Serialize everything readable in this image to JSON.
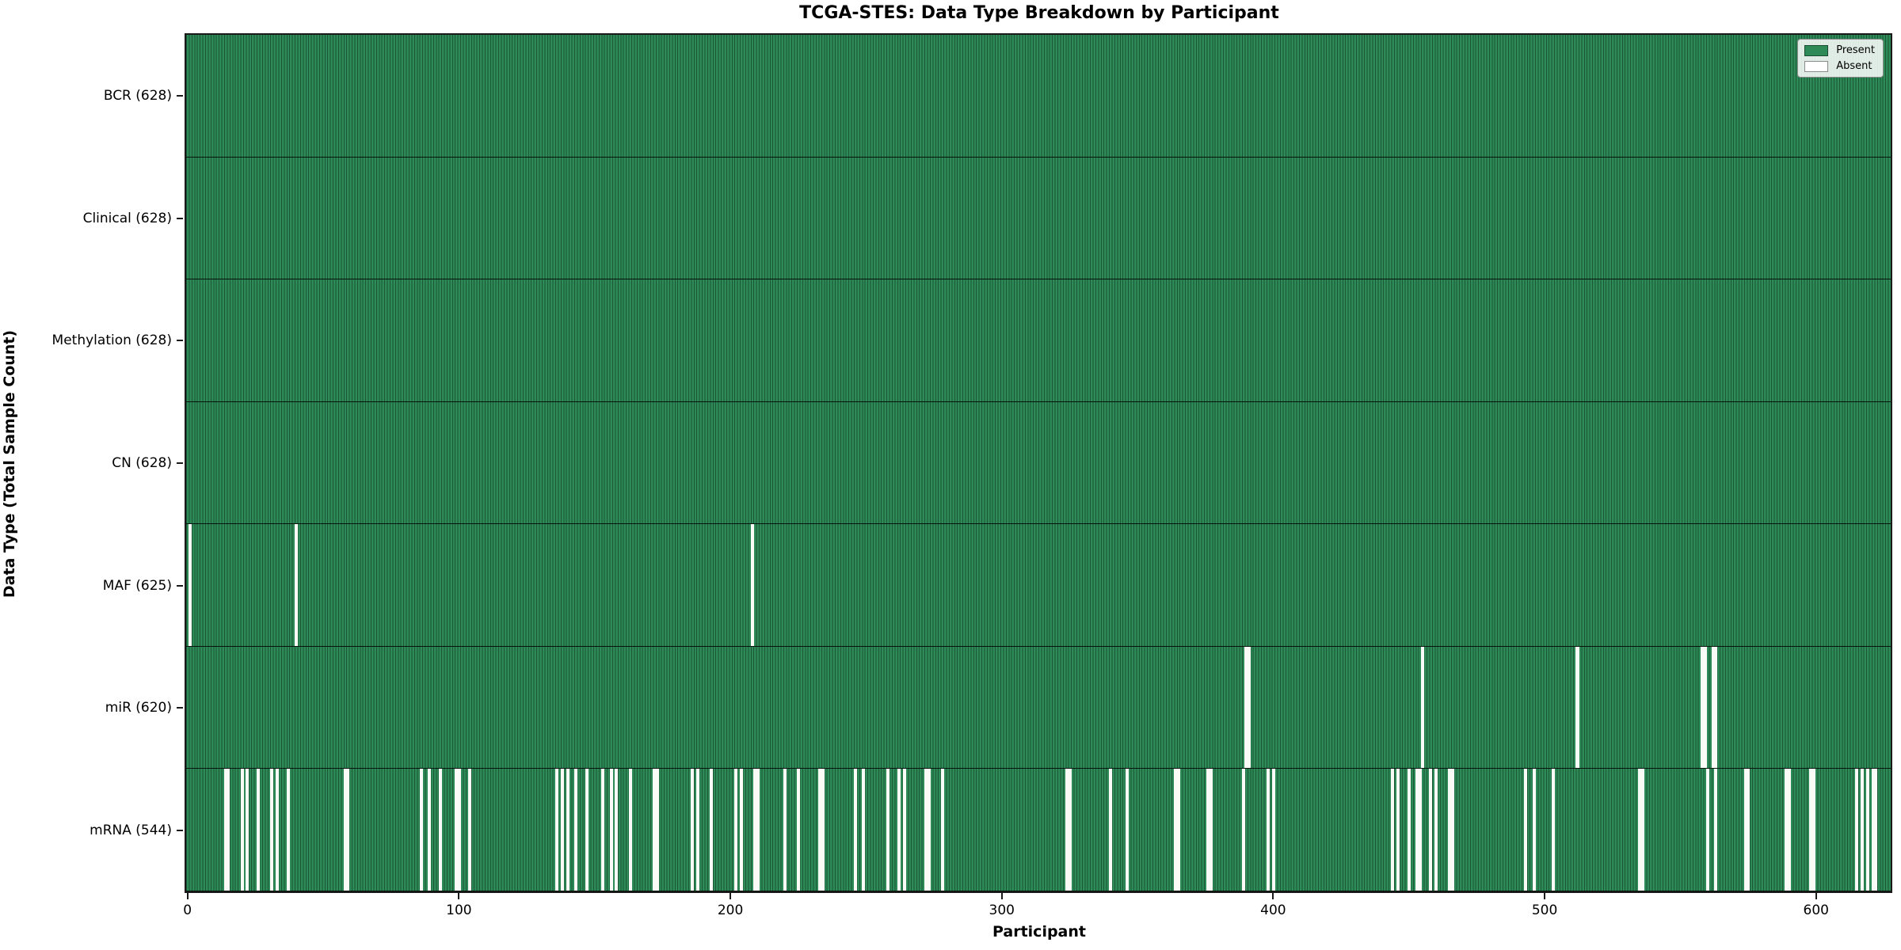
{
  "chart_data": {
    "type": "heatmap",
    "title": "TCGA-STES: Data Type Breakdown by Participant",
    "xlabel": "Participant",
    "ylabel": "Data Type (Total Sample Count)",
    "n_participants": 628,
    "x_ticks": [
      0,
      100,
      200,
      300,
      400,
      500,
      600
    ],
    "xlim": [
      0,
      628
    ],
    "colors": {
      "present": "#2e8b57",
      "absent": "#fafaf7",
      "bar_edge": "rgba(10,40,25,0.55)"
    },
    "legend": {
      "position": "upper right",
      "entries": [
        {
          "label": "Present",
          "color": "#2e8b57"
        },
        {
          "label": "Absent",
          "color": "#ffffff"
        }
      ]
    },
    "rows": [
      {
        "label": "BCR (628)",
        "data_type": "BCR",
        "present_count": 628,
        "absent_participants": []
      },
      {
        "label": "Clinical (628)",
        "data_type": "Clinical",
        "present_count": 628,
        "absent_participants": []
      },
      {
        "label": "Methylation (628)",
        "data_type": "Methylation",
        "present_count": 628,
        "absent_participants": []
      },
      {
        "label": "CN (628)",
        "data_type": "CN",
        "present_count": 628,
        "absent_participants": []
      },
      {
        "label": "MAF (625)",
        "data_type": "MAF",
        "present_count": 625,
        "absent_participants": [
          1,
          40,
          208
        ]
      },
      {
        "label": "miR (620)",
        "data_type": "miR",
        "present_count": 620,
        "absent_participants": [
          390,
          391,
          455,
          512,
          558,
          559,
          562,
          563
        ]
      },
      {
        "label": "mRNA (544)",
        "data_type": "mRNA",
        "present_count": 544,
        "absent_participants": [
          14,
          15,
          20,
          22,
          26,
          31,
          33,
          37,
          58,
          59,
          86,
          89,
          93,
          99,
          100,
          104,
          136,
          138,
          140,
          143,
          147,
          153,
          156,
          158,
          163,
          172,
          173,
          186,
          188,
          193,
          202,
          204,
          209,
          210,
          220,
          225,
          233,
          234,
          246,
          249,
          258,
          262,
          264,
          272,
          273,
          278,
          324,
          325,
          340,
          346,
          364,
          365,
          376,
          377,
          389,
          398,
          400,
          444,
          446,
          450,
          453,
          454,
          458,
          460,
          465,
          466,
          493,
          496,
          503,
          535,
          536,
          560,
          563,
          574,
          575,
          589,
          590,
          598,
          599,
          615,
          617,
          619,
          621,
          622
        ]
      }
    ]
  }
}
